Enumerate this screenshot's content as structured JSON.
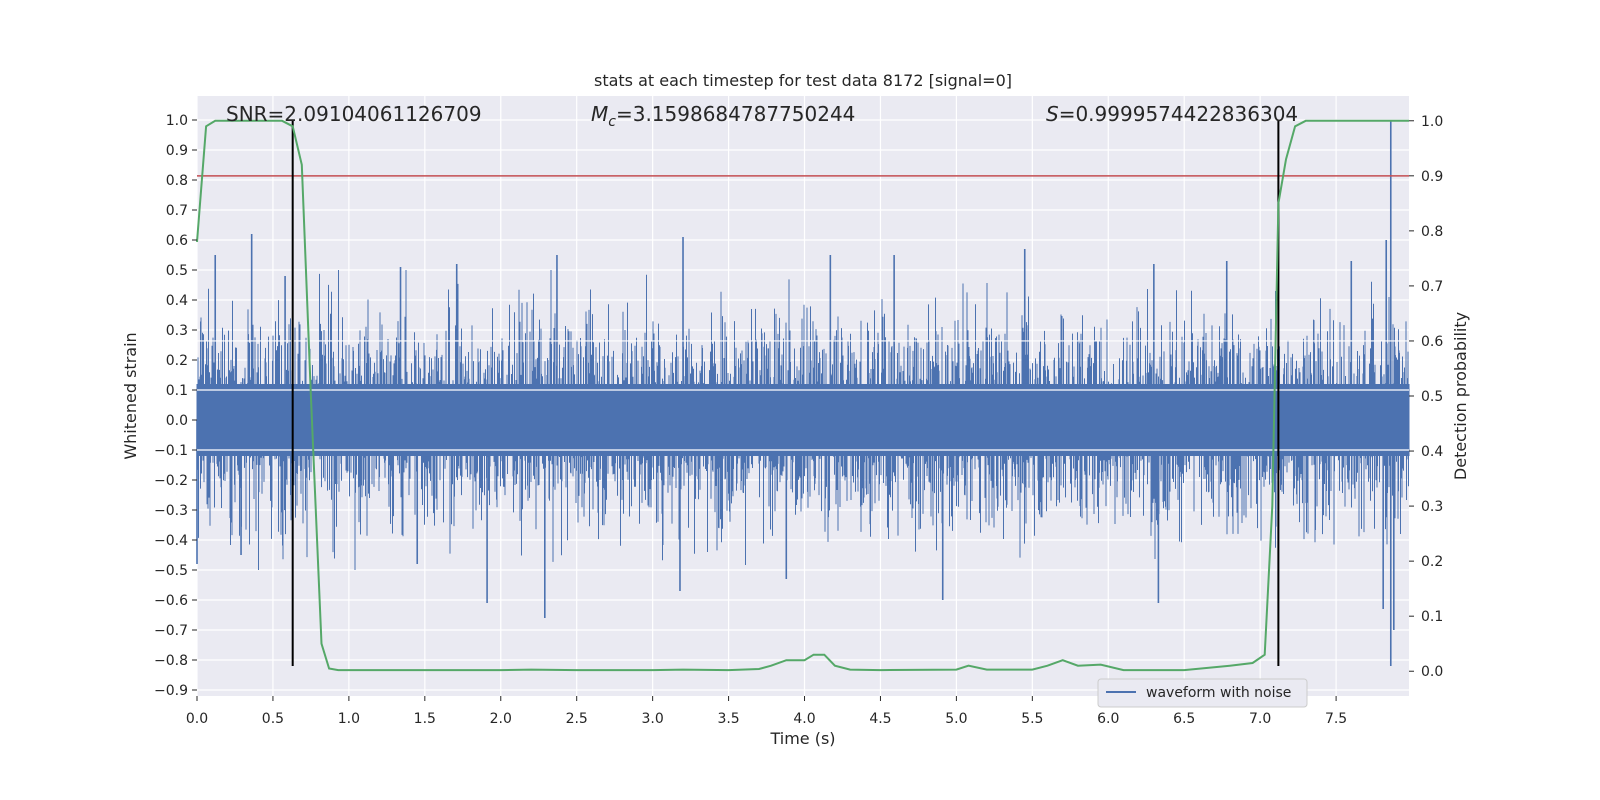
{
  "chart_data": {
    "type": "line",
    "title": "stats at each timestep for test data 8172 [signal=0]",
    "xlabel": "Time (s)",
    "ylabel": "Whitened strain",
    "y2label": "Detection probability",
    "xlim": [
      0.0,
      7.98
    ],
    "ylim": [
      -0.92,
      1.08
    ],
    "y2lim": [
      -0.045,
      1.045
    ],
    "xticks": [
      "0.0",
      "0.5",
      "1.0",
      "1.5",
      "2.0",
      "2.5",
      "3.0",
      "3.5",
      "4.0",
      "4.5",
      "5.0",
      "5.5",
      "6.0",
      "6.5",
      "7.0",
      "7.5"
    ],
    "yticks": [
      "1.0",
      "0.9",
      "0.8",
      "0.7",
      "0.6",
      "0.5",
      "0.4",
      "0.3",
      "0.2",
      "0.1",
      "0.0",
      "−0.1",
      "−0.2",
      "−0.3",
      "−0.4",
      "−0.5",
      "−0.6",
      "−0.7",
      "−0.8",
      "−0.9"
    ],
    "y2ticks": [
      "1.0",
      "0.9",
      "0.8",
      "0.7",
      "0.6",
      "0.5",
      "0.4",
      "0.3",
      "0.2",
      "0.1",
      "0.0"
    ],
    "grid": true,
    "annotations": {
      "snr": "SNR=2.09104061126709",
      "mc_symbol": "M",
      "mc_sub": "c",
      "mc_value": "=3.1598684787750244",
      "s_symbol": "S",
      "s_value": "=0.9999574422836304"
    },
    "threshold": {
      "axis": "right",
      "value": 0.9,
      "color": "#c44e52"
    },
    "vlines": {
      "x": [
        0.63,
        7.12
      ],
      "ymin": -0.82,
      "ymax": 1.0,
      "color": "#000000"
    },
    "series": [
      {
        "name": "waveform with noise",
        "axis": "left",
        "color": "#4c72b0",
        "kind": "noise",
        "x_range": [
          0.0,
          7.98
        ],
        "band_p5_p95": [
          -0.28,
          0.28
        ],
        "spikes": [
          {
            "x": 0.36,
            "y": 0.62
          },
          {
            "x": 0.12,
            "y": 0.55
          },
          {
            "x": 0.58,
            "y": 0.48
          },
          {
            "x": 1.34,
            "y": 0.51
          },
          {
            "x": 1.71,
            "y": 0.52
          },
          {
            "x": 2.37,
            "y": 0.55
          },
          {
            "x": 3.2,
            "y": 0.61
          },
          {
            "x": 4.17,
            "y": 0.55
          },
          {
            "x": 4.59,
            "y": 0.55
          },
          {
            "x": 5.45,
            "y": 0.57
          },
          {
            "x": 6.3,
            "y": 0.52
          },
          {
            "x": 6.78,
            "y": 0.53
          },
          {
            "x": 7.6,
            "y": 0.53
          },
          {
            "x": 7.86,
            "y": 1.0
          },
          {
            "x": 7.83,
            "y": 0.6
          },
          {
            "x": 1.91,
            "y": -0.61
          },
          {
            "x": 2.29,
            "y": -0.66
          },
          {
            "x": 3.18,
            "y": -0.57
          },
          {
            "x": 3.88,
            "y": -0.53
          },
          {
            "x": 4.91,
            "y": -0.6
          },
          {
            "x": 6.33,
            "y": -0.61
          },
          {
            "x": 7.81,
            "y": -0.63
          },
          {
            "x": 7.86,
            "y": -0.82
          },
          {
            "x": 7.88,
            "y": -0.7
          },
          {
            "x": 0.0,
            "y": -0.48
          },
          {
            "x": 0.29,
            "y": -0.45
          },
          {
            "x": 1.45,
            "y": -0.48
          }
        ]
      },
      {
        "name": "",
        "axis": "right",
        "color": "#55a868",
        "x": [
          0.0,
          0.06,
          0.12,
          0.2,
          0.3,
          0.4,
          0.5,
          0.56,
          0.63,
          0.69,
          0.75,
          0.82,
          0.87,
          0.93,
          1.0,
          1.5,
          2.0,
          2.2,
          2.5,
          3.0,
          3.2,
          3.5,
          3.7,
          3.78,
          3.88,
          4.0,
          4.06,
          4.13,
          4.2,
          4.3,
          4.5,
          5.0,
          5.08,
          5.2,
          5.5,
          5.6,
          5.7,
          5.8,
          5.95,
          6.1,
          6.5,
          6.8,
          6.95,
          7.03,
          7.08,
          7.12,
          7.17,
          7.23,
          7.3,
          7.5,
          7.98
        ],
        "y": [
          0.78,
          0.99,
          1.0,
          1.0,
          1.0,
          1.0,
          1.0,
          1.0,
          0.99,
          0.92,
          0.5,
          0.05,
          0.005,
          0.002,
          0.002,
          0.002,
          0.002,
          0.003,
          0.002,
          0.002,
          0.003,
          0.002,
          0.004,
          0.01,
          0.02,
          0.02,
          0.03,
          0.03,
          0.01,
          0.003,
          0.002,
          0.003,
          0.01,
          0.003,
          0.003,
          0.01,
          0.02,
          0.01,
          0.012,
          0.002,
          0.002,
          0.01,
          0.015,
          0.03,
          0.3,
          0.85,
          0.93,
          0.99,
          1.0,
          1.0,
          1.0
        ]
      }
    ],
    "legend": {
      "location": "lower-right",
      "entries": [
        "waveform with noise"
      ]
    }
  }
}
